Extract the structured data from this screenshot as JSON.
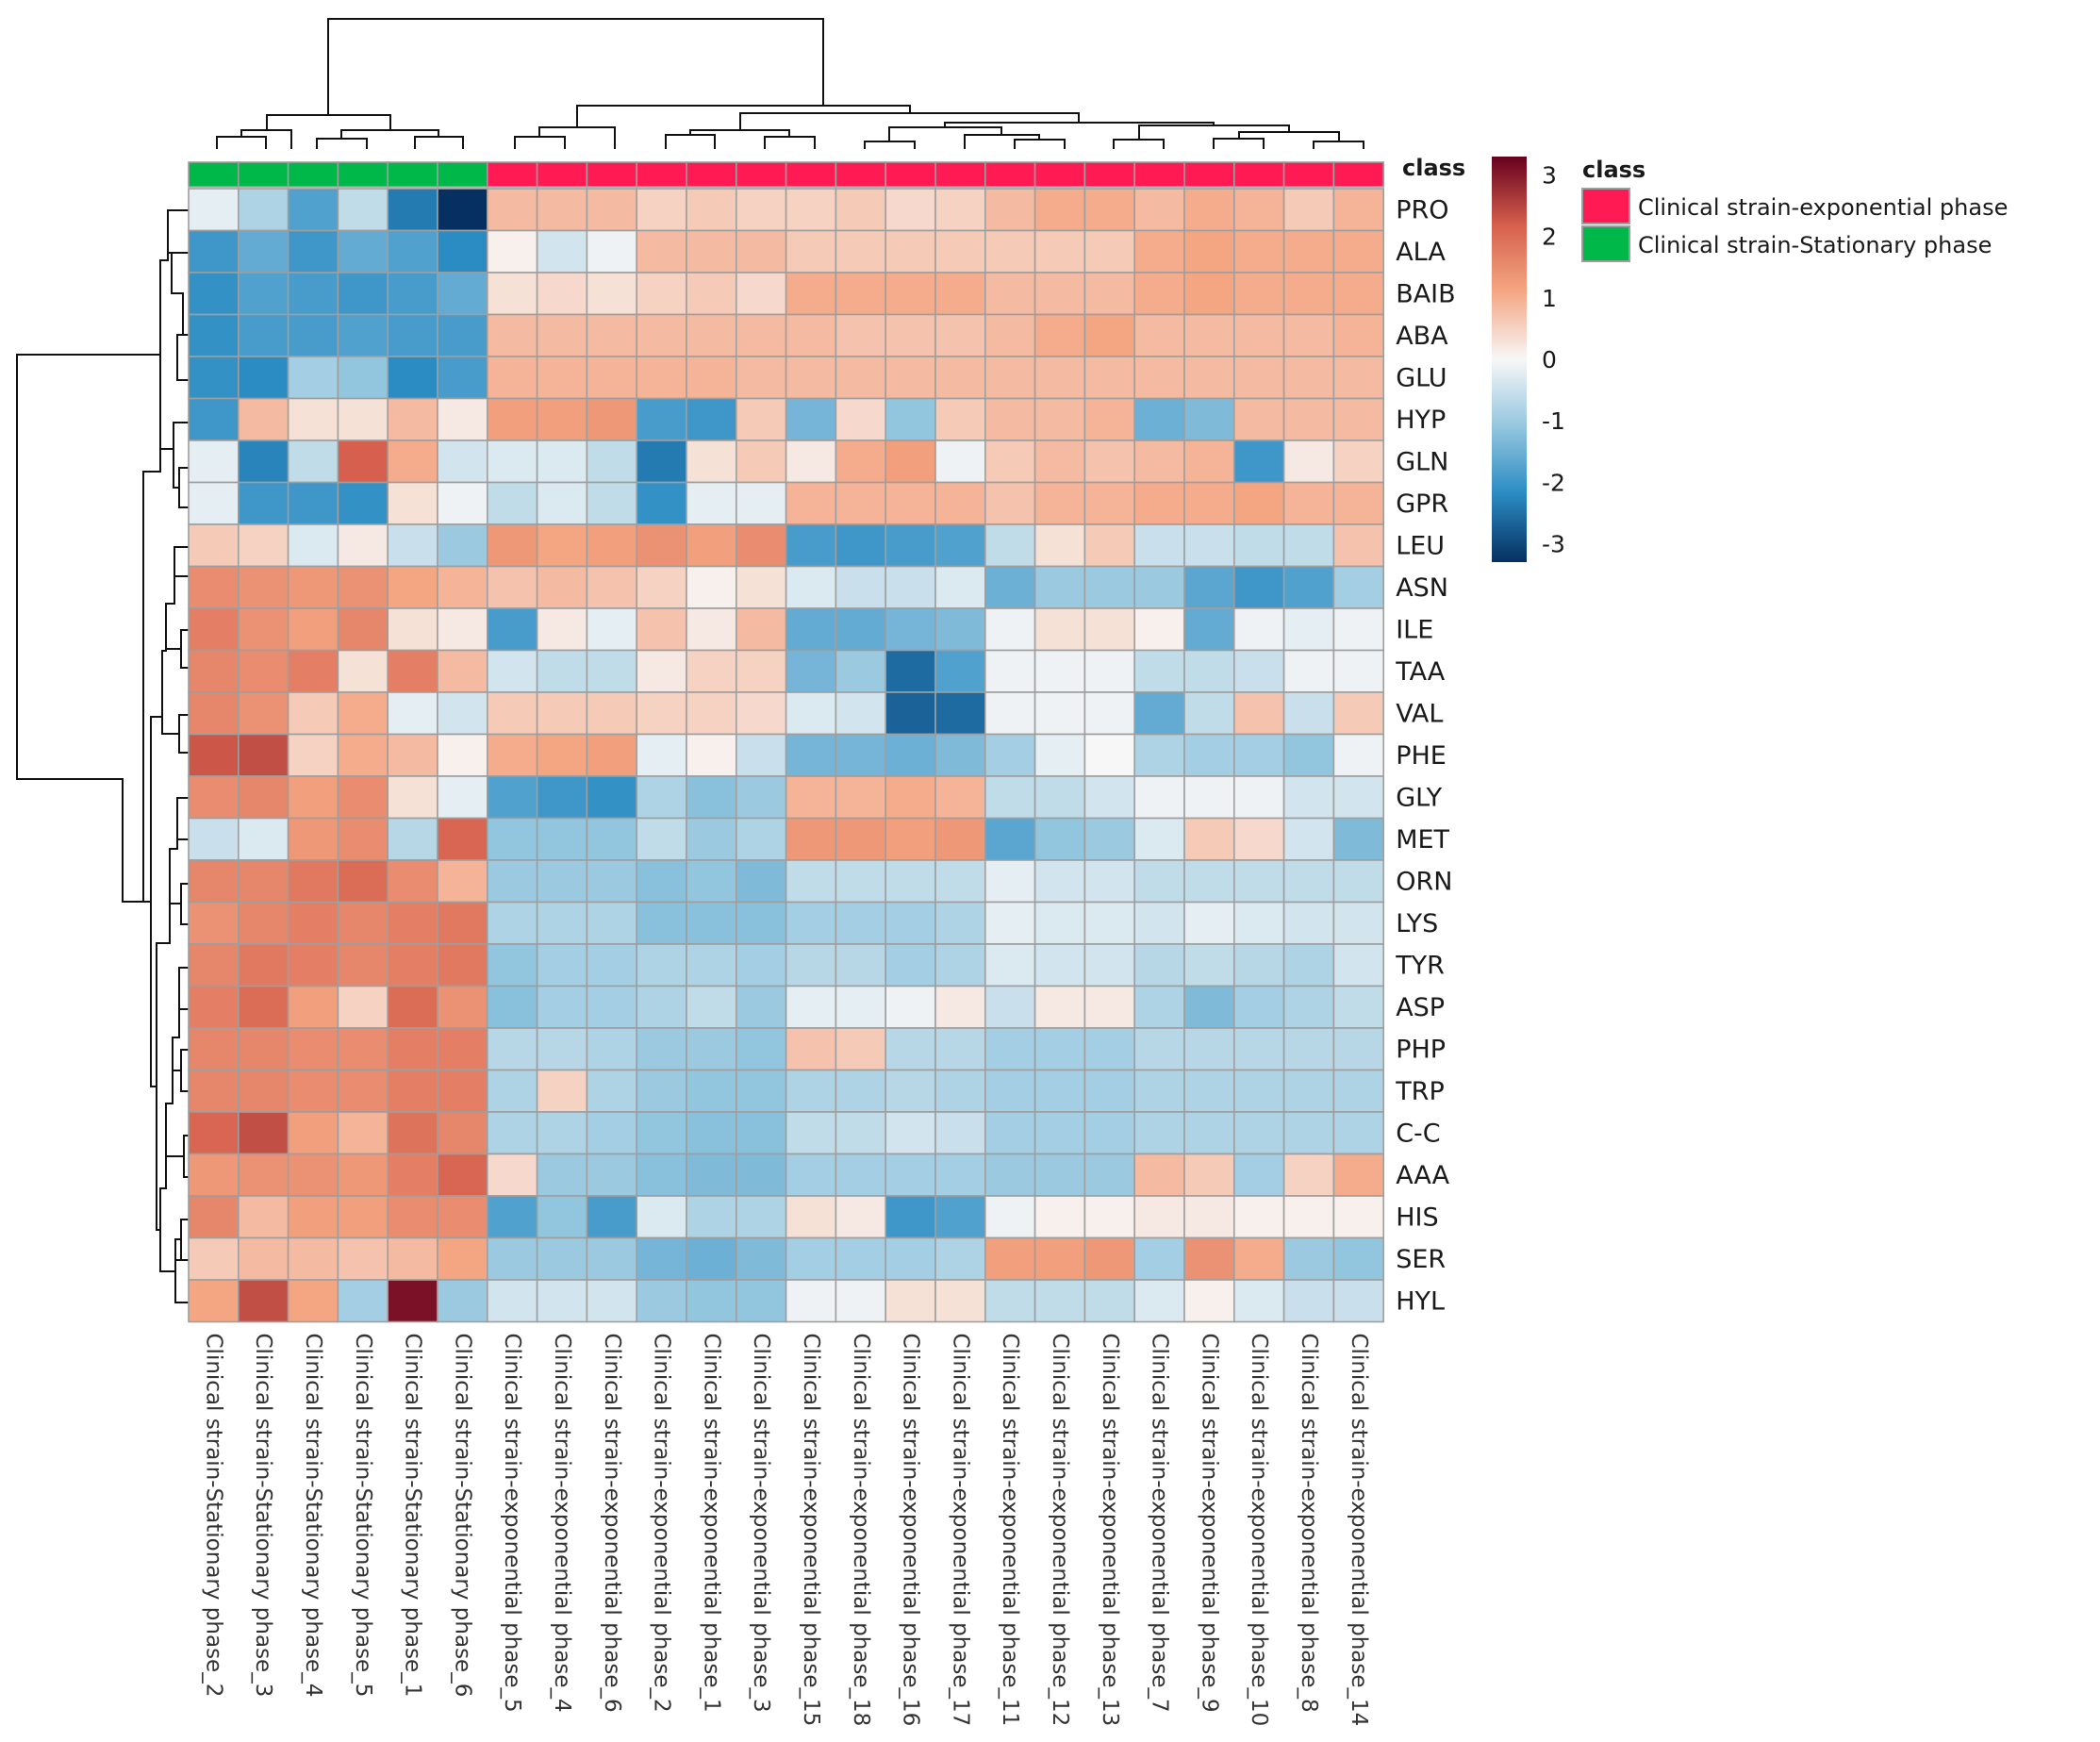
{
  "chart_data": {
    "type": "heatmap",
    "rows": [
      "PRO",
      "ALA",
      "BAIB",
      "ABA",
      "GLU",
      "HYP",
      "GLN",
      "GPR",
      "LEU",
      "ASN",
      "ILE",
      "TAA",
      "VAL",
      "PHE",
      "GLY",
      "MET",
      "ORN",
      "LYS",
      "TYR",
      "ASP",
      "PHP",
      "TRP",
      "C-C",
      "AAA",
      "HIS",
      "SER",
      "HYL"
    ],
    "columns": [
      {
        "name": "Clinical strain-Stationary phase",
        "num": "2"
      },
      {
        "name": "Clinical strain-Stationary phase",
        "num": "3"
      },
      {
        "name": "Clinical strain-Stationary phase",
        "num": "4"
      },
      {
        "name": "Clinical strain-Stationary phase",
        "num": "5"
      },
      {
        "name": "Clinical strain-Stationary phase",
        "num": "1"
      },
      {
        "name": "Clinical strain-Stationary phase",
        "num": "6"
      },
      {
        "name": "Clinical strain-exponential phase",
        "num": "5"
      },
      {
        "name": "Clinical strain-exponential phase",
        "num": "4"
      },
      {
        "name": "Clinical strain-exponential phase",
        "num": "6"
      },
      {
        "name": "Clinical strain-exponential phase",
        "num": "2"
      },
      {
        "name": "Clinical strain-exponential phase",
        "num": "1"
      },
      {
        "name": "Clinical strain-exponential phase",
        "num": "3"
      },
      {
        "name": "Clinical strain-exponential phase",
        "num": "15"
      },
      {
        "name": "Clinical strain-exponential phase",
        "num": "18"
      },
      {
        "name": "Clinical strain-exponential phase",
        "num": "16"
      },
      {
        "name": "Clinical strain-exponential phase",
        "num": "17"
      },
      {
        "name": "Clinical strain-exponential phase",
        "num": "11"
      },
      {
        "name": "Clinical strain-exponential phase",
        "num": "12"
      },
      {
        "name": "Clinical strain-exponential phase",
        "num": "13"
      },
      {
        "name": "Clinical strain-exponential phase",
        "num": "7"
      },
      {
        "name": "Clinical strain-exponential phase",
        "num": "9"
      },
      {
        "name": "Clinical strain-exponential phase",
        "num": "10"
      },
      {
        "name": "Clinical strain-exponential phase",
        "num": "8"
      },
      {
        "name": "Clinical strain-exponential phase",
        "num": "14"
      }
    ],
    "column_class": [
      "stat",
      "stat",
      "stat",
      "stat",
      "stat",
      "stat",
      "exp",
      "exp",
      "exp",
      "exp",
      "exp",
      "exp",
      "exp",
      "exp",
      "exp",
      "exp",
      "exp",
      "exp",
      "exp",
      "exp",
      "exp",
      "exp",
      "exp",
      "exp"
    ],
    "values": [
      [
        -0.2,
        -0.8,
        -1.8,
        -0.6,
        -2.4,
        -3.3,
        0.8,
        0.8,
        0.8,
        0.5,
        0.6,
        0.5,
        0.5,
        0.6,
        0.4,
        0.5,
        0.8,
        1.0,
        1.0,
        0.8,
        1.0,
        0.9,
        0.6,
        0.9
      ],
      [
        -2.0,
        -1.6,
        -2.0,
        -1.6,
        -1.8,
        -2.2,
        0.1,
        -0.4,
        -0.1,
        0.8,
        0.8,
        0.8,
        0.6,
        0.6,
        0.6,
        0.6,
        0.6,
        0.6,
        0.6,
        1.0,
        1.1,
        1.0,
        1.0,
        1.0
      ],
      [
        -2.1,
        -1.8,
        -1.9,
        -2.0,
        -1.9,
        -1.6,
        0.3,
        0.4,
        0.3,
        0.5,
        0.6,
        0.4,
        1.0,
        1.0,
        1.0,
        1.0,
        0.8,
        0.8,
        0.8,
        1.0,
        1.1,
        1.0,
        1.0,
        1.0
      ],
      [
        -2.1,
        -1.9,
        -1.9,
        -1.8,
        -1.9,
        -1.9,
        0.8,
        0.8,
        0.8,
        0.8,
        0.8,
        0.8,
        0.8,
        0.7,
        0.7,
        0.7,
        0.8,
        1.0,
        1.1,
        0.8,
        0.8,
        0.8,
        0.8,
        0.9
      ],
      [
        -2.1,
        -2.2,
        -0.9,
        -1.1,
        -2.2,
        -1.9,
        0.9,
        0.9,
        0.9,
        0.9,
        0.9,
        0.8,
        0.8,
        0.8,
        0.8,
        0.8,
        0.8,
        0.8,
        0.8,
        0.8,
        0.8,
        0.8,
        0.8,
        0.8
      ],
      [
        -2.0,
        0.8,
        0.3,
        0.3,
        0.8,
        0.2,
        1.2,
        1.2,
        1.3,
        -1.9,
        -2.0,
        0.6,
        -1.4,
        0.4,
        -1.1,
        0.6,
        0.8,
        0.8,
        0.9,
        -1.5,
        -1.3,
        0.8,
        0.8,
        0.8
      ],
      [
        -0.2,
        -2.3,
        -0.6,
        2.2,
        1.0,
        -0.4,
        -0.3,
        -0.3,
        -0.6,
        -2.4,
        0.3,
        0.6,
        0.2,
        1.0,
        1.2,
        -0.1,
        0.6,
        0.8,
        0.7,
        0.8,
        0.9,
        -2.0,
        0.2,
        0.5
      ],
      [
        -0.2,
        -2.0,
        -2.0,
        -2.1,
        0.3,
        -0.1,
        -0.6,
        -0.3,
        -0.6,
        -2.1,
        -0.2,
        -0.2,
        0.9,
        0.9,
        0.9,
        0.9,
        0.7,
        0.9,
        0.9,
        1.0,
        1.0,
        1.1,
        0.9,
        0.9
      ],
      [
        0.6,
        0.5,
        -0.3,
        0.2,
        -0.5,
        -1.0,
        1.3,
        1.1,
        1.2,
        1.4,
        1.2,
        1.5,
        -1.9,
        -2.0,
        -1.9,
        -1.8,
        -0.6,
        0.3,
        0.6,
        -0.5,
        -0.5,
        -0.6,
        -0.6,
        0.7
      ],
      [
        1.5,
        1.4,
        1.3,
        1.4,
        1.1,
        0.9,
        0.7,
        0.8,
        0.7,
        0.5,
        0.1,
        0.3,
        -0.3,
        -0.5,
        -0.5,
        -0.3,
        -1.5,
        -1.0,
        -1.0,
        -1.0,
        -1.7,
        -2.0,
        -1.8,
        -0.9
      ],
      [
        1.7,
        1.4,
        1.2,
        1.6,
        0.3,
        0.2,
        -1.9,
        0.2,
        -0.2,
        0.7,
        0.2,
        0.8,
        -1.6,
        -1.6,
        -1.4,
        -1.3,
        -0.1,
        0.3,
        0.3,
        0.1,
        -1.6,
        -0.1,
        -0.2,
        -0.1
      ],
      [
        1.6,
        1.5,
        1.7,
        0.3,
        1.7,
        0.8,
        -0.4,
        -0.6,
        -0.6,
        0.2,
        0.5,
        0.5,
        -1.4,
        -1.0,
        -2.6,
        -1.8,
        -0.1,
        -0.1,
        -0.1,
        -0.6,
        -0.6,
        -0.5,
        -0.1,
        -0.1
      ],
      [
        1.6,
        1.4,
        0.6,
        1.0,
        -0.2,
        -0.4,
        0.6,
        0.6,
        0.6,
        0.5,
        0.5,
        0.4,
        -0.3,
        -0.4,
        -2.7,
        -2.6,
        -0.1,
        -0.1,
        -0.1,
        -1.6,
        -0.6,
        0.7,
        -0.5,
        0.6
      ],
      [
        2.3,
        2.4,
        0.5,
        1.0,
        0.8,
        0.1,
        1.0,
        1.1,
        1.2,
        -0.2,
        0.1,
        -0.5,
        -1.4,
        -1.4,
        -1.5,
        -1.3,
        -0.9,
        -0.2,
        0.0,
        -0.8,
        -0.9,
        -0.9,
        -1.1,
        -0.1
      ],
      [
        1.5,
        1.6,
        1.2,
        1.5,
        0.3,
        -0.2,
        -1.8,
        -2.0,
        -2.1,
        -0.8,
        -1.2,
        -1.0,
        0.9,
        0.9,
        1.0,
        0.9,
        -0.6,
        -0.6,
        -0.4,
        -0.1,
        -0.1,
        -0.1,
        -0.4,
        -0.4
      ],
      [
        -0.5,
        -0.3,
        1.3,
        1.5,
        -0.7,
        2.1,
        -1.1,
        -1.1,
        -1.1,
        -0.6,
        -1.0,
        -0.8,
        1.3,
        1.3,
        1.2,
        1.3,
        -1.7,
        -1.1,
        -1.0,
        -0.3,
        0.6,
        0.4,
        -0.4,
        -1.3
      ],
      [
        1.6,
        1.6,
        1.8,
        2.0,
        1.5,
        0.9,
        -1.0,
        -1.0,
        -1.0,
        -1.2,
        -1.1,
        -1.3,
        -0.6,
        -0.6,
        -0.6,
        -0.6,
        -0.2,
        -0.4,
        -0.4,
        -0.6,
        -0.6,
        -0.6,
        -0.6,
        -0.6
      ],
      [
        1.4,
        1.6,
        1.7,
        1.6,
        1.7,
        1.8,
        -0.8,
        -0.8,
        -0.8,
        -1.2,
        -1.2,
        -1.2,
        -0.9,
        -0.9,
        -0.9,
        -0.8,
        -0.2,
        -0.3,
        -0.3,
        -0.4,
        -0.2,
        -0.3,
        -0.4,
        -0.4
      ],
      [
        1.6,
        1.8,
        1.7,
        1.6,
        1.7,
        1.8,
        -1.1,
        -0.9,
        -0.9,
        -0.8,
        -0.8,
        -0.9,
        -0.7,
        -0.7,
        -0.9,
        -0.8,
        -0.3,
        -0.4,
        -0.4,
        -0.7,
        -0.6,
        -0.7,
        -0.8,
        -0.4
      ],
      [
        1.7,
        2.0,
        1.2,
        0.5,
        2.0,
        1.4,
        -1.2,
        -0.9,
        -0.9,
        -0.8,
        -0.6,
        -1.0,
        -0.2,
        -0.2,
        -0.1,
        0.2,
        -0.5,
        0.2,
        0.2,
        -0.8,
        -1.3,
        -0.9,
        -0.8,
        -0.6
      ],
      [
        1.6,
        1.6,
        1.5,
        1.5,
        1.7,
        1.7,
        -0.7,
        -0.7,
        -0.8,
        -1.0,
        -1.0,
        -1.1,
        0.7,
        0.6,
        -0.7,
        -0.7,
        -0.9,
        -0.9,
        -0.9,
        -0.7,
        -0.7,
        -0.7,
        -0.7,
        -0.7
      ],
      [
        1.6,
        1.6,
        1.5,
        1.5,
        1.7,
        1.7,
        -0.8,
        0.5,
        -0.8,
        -1.0,
        -1.1,
        -1.1,
        -0.8,
        -0.8,
        -0.7,
        -0.8,
        -0.9,
        -0.9,
        -0.9,
        -0.8,
        -0.8,
        -0.8,
        -0.8,
        -0.8
      ],
      [
        2.1,
        2.4,
        1.2,
        0.9,
        1.9,
        1.6,
        -0.8,
        -0.8,
        -0.9,
        -1.1,
        -1.2,
        -1.2,
        -0.6,
        -0.6,
        -0.4,
        -0.5,
        -0.9,
        -0.9,
        -0.9,
        -0.8,
        -0.8,
        -0.8,
        -0.8,
        -0.8
      ],
      [
        1.3,
        1.4,
        1.4,
        1.3,
        1.7,
        2.1,
        0.4,
        -1.0,
        -1.0,
        -1.2,
        -1.3,
        -1.3,
        -0.9,
        -0.9,
        -0.9,
        -0.9,
        -1.0,
        -1.0,
        -1.0,
        0.8,
        0.6,
        -0.9,
        0.5,
        1.0
      ],
      [
        1.6,
        0.8,
        1.2,
        1.2,
        1.5,
        1.5,
        -1.8,
        -1.1,
        -1.9,
        -0.3,
        -0.8,
        -0.8,
        0.3,
        0.2,
        -2.0,
        -1.8,
        -0.1,
        0.1,
        0.1,
        0.2,
        0.2,
        0.1,
        0.1,
        0.1
      ],
      [
        0.6,
        0.8,
        0.8,
        0.7,
        0.8,
        1.1,
        -1.0,
        -1.0,
        -1.0,
        -1.4,
        -1.5,
        -1.3,
        -0.9,
        -0.9,
        -0.9,
        -0.8,
        1.2,
        1.2,
        1.3,
        -0.9,
        1.4,
        1.0,
        -1.0,
        -1.1
      ],
      [
        1.1,
        2.4,
        1.1,
        -0.9,
        3.1,
        -1.0,
        -0.4,
        -0.4,
        -0.4,
        -1.0,
        -1.1,
        -1.1,
        -0.1,
        -0.1,
        0.3,
        0.3,
        -0.6,
        -0.6,
        -0.6,
        -0.3,
        0.1,
        -0.3,
        -0.5,
        -0.5
      ]
    ],
    "color_scale": {
      "min": -3.3,
      "max": 3.3,
      "ticks": [
        "3",
        "2",
        "1",
        "0",
        "-1",
        "-2",
        "-3"
      ]
    },
    "class_annotation_label": "class",
    "legend": {
      "title": "class",
      "items": [
        {
          "label": "Clinical strain-exponential phase",
          "color": "#ff1a53"
        },
        {
          "label": "Clinical strain-Stationary phase",
          "color": "#00b84a"
        }
      ]
    },
    "colors": {
      "high": "#67001f",
      "mid": "#f7f7f7",
      "low": "#053061",
      "exp": "#ff1a53",
      "stat": "#00b84a",
      "grid": "#9e9e9e"
    }
  }
}
